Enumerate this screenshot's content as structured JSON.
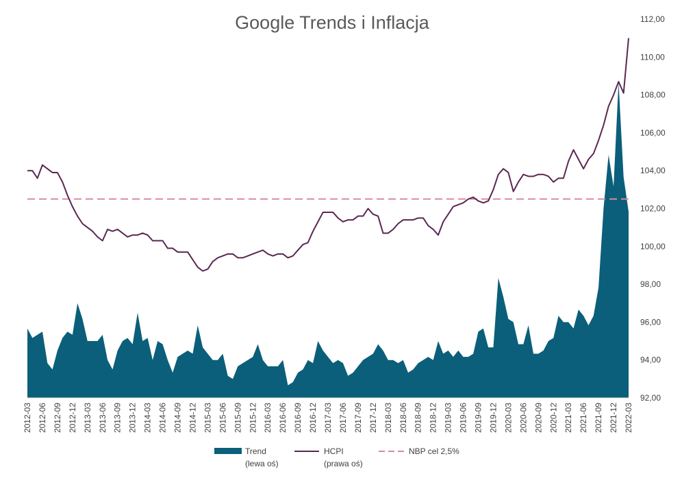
{
  "chart_data": {
    "type": "area+line",
    "title": "Google Trends i Inflacja",
    "x_start": "2012-03",
    "x_end": "2022-03",
    "x_tick_every_months": 3,
    "right_axis": {
      "ylim": [
        92,
        112
      ],
      "step": 2,
      "decimal_separator": ",",
      "decimals": 2
    },
    "left_axis": {
      "ylim": [
        0,
        120
      ],
      "visible": false
    },
    "grid": false,
    "legend_position": "bottom",
    "colors": {
      "trend": "#0b5f7a",
      "hcpi": "#5a2750",
      "nbp": "#d98a9c",
      "title": "#595959",
      "axis_text": "#404040"
    },
    "series": [
      {
        "name": "Trend",
        "legend_sub": "(lewa oś)",
        "axis": "left",
        "kind": "area",
        "values": [
          22,
          19,
          20,
          21,
          11,
          9,
          15,
          19,
          21,
          20,
          30,
          25,
          18,
          18,
          18,
          20,
          12,
          9,
          15,
          18,
          19,
          17,
          27,
          18,
          19,
          12,
          18,
          17,
          12,
          8,
          13,
          14,
          15,
          14,
          23,
          16,
          14,
          12,
          12,
          14,
          7,
          6,
          10,
          11,
          12,
          13,
          17,
          12,
          10,
          10,
          10,
          12,
          4,
          5,
          8,
          9,
          12,
          11,
          18,
          15,
          13,
          11,
          12,
          11,
          7,
          8,
          10,
          12,
          13,
          14,
          17,
          15,
          12,
          12,
          11,
          12,
          8,
          9,
          11,
          12,
          13,
          12,
          18,
          14,
          15,
          13,
          15,
          13,
          13,
          14,
          21,
          22,
          16,
          16,
          38,
          32,
          25,
          24,
          17,
          17,
          23,
          14,
          14,
          15,
          18,
          19,
          26,
          24,
          24,
          22,
          28,
          26,
          23,
          26,
          35,
          60,
          77,
          67,
          100,
          70,
          59
        ]
      },
      {
        "name": "HCPI",
        "legend_sub": "(prawa oś)",
        "axis": "right",
        "kind": "line",
        "values": [
          104.0,
          104.0,
          103.6,
          104.3,
          104.1,
          103.9,
          103.9,
          103.4,
          102.7,
          102.1,
          101.6,
          101.2,
          101.0,
          100.8,
          100.5,
          100.3,
          100.9,
          100.8,
          100.9,
          100.7,
          100.5,
          100.6,
          100.6,
          100.7,
          100.6,
          100.3,
          100.3,
          100.3,
          99.9,
          99.9,
          99.7,
          99.7,
          99.7,
          99.3,
          98.9,
          98.7,
          98.8,
          99.2,
          99.4,
          99.5,
          99.6,
          99.6,
          99.4,
          99.4,
          99.5,
          99.6,
          99.7,
          99.8,
          99.6,
          99.5,
          99.6,
          99.6,
          99.4,
          99.5,
          99.8,
          100.1,
          100.2,
          100.8,
          101.3,
          101.8,
          101.8,
          101.8,
          101.5,
          101.3,
          101.4,
          101.4,
          101.6,
          101.6,
          102.0,
          101.7,
          101.6,
          100.7,
          100.7,
          100.9,
          101.2,
          101.4,
          101.4,
          101.4,
          101.5,
          101.5,
          101.1,
          100.9,
          100.6,
          101.3,
          101.7,
          102.1,
          102.2,
          102.3,
          102.5,
          102.6,
          102.4,
          102.3,
          102.4,
          103.0,
          103.8,
          104.1,
          103.9,
          102.9,
          103.4,
          103.8,
          103.7,
          103.7,
          103.8,
          103.8,
          103.7,
          103.4,
          103.6,
          103.6,
          104.5,
          105.1,
          104.6,
          104.1,
          104.6,
          104.9,
          105.6,
          106.4,
          107.4,
          108.0,
          108.7,
          108.1,
          111.0
        ]
      },
      {
        "name": "NBP cel 2,5%",
        "axis": "right",
        "kind": "dashed-constant",
        "value": 102.5
      }
    ]
  }
}
